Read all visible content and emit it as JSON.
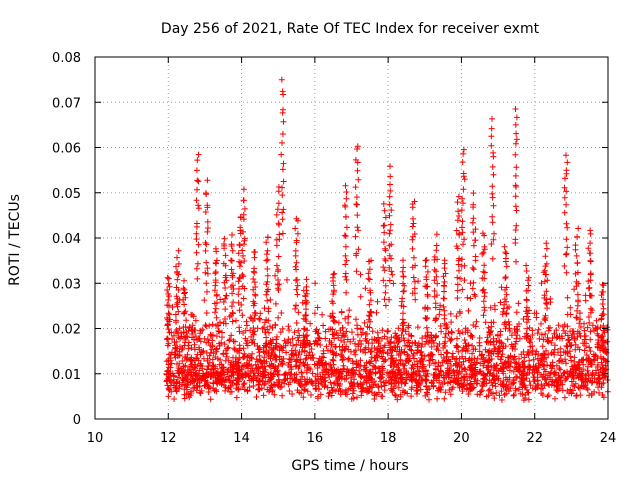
{
  "chart_data": {
    "type": "scatter",
    "title": "Day 256 of 2021, Rate Of TEC Index for receiver exmt",
    "xlabel": "GPS time / hours",
    "ylabel": "ROTI / TECUs",
    "xlim": [
      10,
      24
    ],
    "ylim": [
      0,
      0.08
    ],
    "x_ticks": [
      "10",
      "12",
      "14",
      "16",
      "18",
      "20",
      "22",
      "24"
    ],
    "y_ticks": [
      "0",
      "0.01",
      "0.02",
      "0.03",
      "0.04",
      "0.05",
      "0.06",
      "0.07",
      "0.08"
    ],
    "grid": true,
    "marker": "+",
    "color": "#ff0000",
    "series": [
      {
        "name": "ROTI",
        "x_range": [
          11.95,
          24.0
        ],
        "typical_range": [
          0.004,
          0.03
        ],
        "peaks": [
          {
            "x": 12.0,
            "y": 0.032
          },
          {
            "x": 12.25,
            "y": 0.037
          },
          {
            "x": 12.45,
            "y": 0.03
          },
          {
            "x": 12.8,
            "y": 0.058
          },
          {
            "x": 13.05,
            "y": 0.052
          },
          {
            "x": 13.3,
            "y": 0.038
          },
          {
            "x": 13.55,
            "y": 0.04
          },
          {
            "x": 13.75,
            "y": 0.04
          },
          {
            "x": 13.95,
            "y": 0.045
          },
          {
            "x": 14.05,
            "y": 0.05
          },
          {
            "x": 14.35,
            "y": 0.037
          },
          {
            "x": 14.7,
            "y": 0.041
          },
          {
            "x": 15.0,
            "y": 0.051
          },
          {
            "x": 15.12,
            "y": 0.075
          },
          {
            "x": 15.5,
            "y": 0.044
          },
          {
            "x": 15.75,
            "y": 0.03
          },
          {
            "x": 16.5,
            "y": 0.033
          },
          {
            "x": 16.85,
            "y": 0.052
          },
          {
            "x": 17.15,
            "y": 0.061
          },
          {
            "x": 17.5,
            "y": 0.036
          },
          {
            "x": 17.9,
            "y": 0.047
          },
          {
            "x": 18.05,
            "y": 0.055
          },
          {
            "x": 18.4,
            "y": 0.035
          },
          {
            "x": 18.7,
            "y": 0.049
          },
          {
            "x": 19.05,
            "y": 0.036
          },
          {
            "x": 19.3,
            "y": 0.04
          },
          {
            "x": 19.55,
            "y": 0.035
          },
          {
            "x": 19.9,
            "y": 0.049
          },
          {
            "x": 20.05,
            "y": 0.06
          },
          {
            "x": 20.35,
            "y": 0.049
          },
          {
            "x": 20.6,
            "y": 0.041
          },
          {
            "x": 20.85,
            "y": 0.066
          },
          {
            "x": 21.2,
            "y": 0.038
          },
          {
            "x": 21.5,
            "y": 0.069
          },
          {
            "x": 21.8,
            "y": 0.033
          },
          {
            "x": 22.3,
            "y": 0.038
          },
          {
            "x": 22.85,
            "y": 0.059
          },
          {
            "x": 23.15,
            "y": 0.042
          },
          {
            "x": 23.5,
            "y": 0.042
          },
          {
            "x": 23.85,
            "y": 0.03
          }
        ]
      }
    ]
  }
}
